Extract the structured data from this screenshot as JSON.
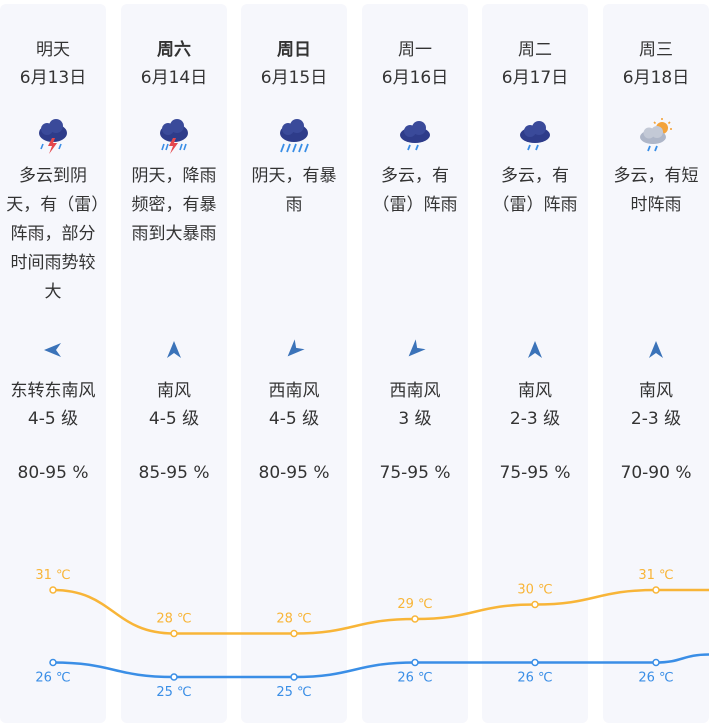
{
  "days": [
    {
      "name": "明天",
      "date": "6月13日",
      "bold": false,
      "icon": "thunderstorm-cloud-icon",
      "description": "多云到阴天，有（雷）阵雨，部分时间雨势较大",
      "wind_direction": "东转东南风",
      "wind_level": "4-5 级",
      "humidity": "80-95 %"
    },
    {
      "name": "周六",
      "date": "6月14日",
      "bold": true,
      "icon": "thunderstorm-cloud-icon",
      "description": "阴天，降雨频密，有暴雨到大暴雨",
      "wind_direction": "南风",
      "wind_level": "4-5 级",
      "humidity": "85-95 %"
    },
    {
      "name": "周日",
      "date": "6月15日",
      "bold": true,
      "icon": "heavy-rain-cloud-icon",
      "description": "阴天，有暴雨",
      "wind_direction": "西南风",
      "wind_level": "4-5 级",
      "humidity": "80-95 %"
    },
    {
      "name": "周一",
      "date": "6月16日",
      "bold": false,
      "icon": "rain-cloud-icon",
      "description": "多云，有（雷）阵雨",
      "wind_direction": "西南风",
      "wind_level": "3 级",
      "humidity": "75-95 %"
    },
    {
      "name": "周二",
      "date": "6月17日",
      "bold": false,
      "icon": "rain-cloud-icon",
      "description": "多云，有（雷）阵雨",
      "wind_direction": "南风",
      "wind_level": "2-3 级",
      "humidity": "75-95 %"
    },
    {
      "name": "周三",
      "date": "6月18日",
      "bold": false,
      "icon": "sun-cloud-shower-icon",
      "description": "多云，有短时阵雨",
      "wind_direction": "南风",
      "wind_level": "2-3 级",
      "humidity": "70-90 %"
    }
  ],
  "chart_data": {
    "type": "line",
    "x": [
      "6月13日",
      "6月14日",
      "6月15日",
      "6月16日",
      "6月17日",
      "6月18日"
    ],
    "series": [
      {
        "values": [
          31,
          28,
          28,
          29,
          30,
          31
        ],
        "labels": [
          "31 ℃",
          "28 ℃",
          "28 ℃",
          "29 ℃",
          "30 ℃",
          "31 ℃"
        ],
        "color": "#f8b538"
      },
      {
        "values": [
          26,
          25,
          25,
          26,
          26,
          26
        ],
        "labels": [
          "26 ℃",
          "25 ℃",
          "25 ℃",
          "26 ℃",
          "26 ℃",
          "26 ℃"
        ],
        "color": "#3a8ee6"
      }
    ]
  },
  "colors": {
    "column_bg": "#f6f7fc",
    "cloud_dark": "#2e3c8a",
    "lightning": "#e5484d",
    "rain": "#3a8ee6",
    "sun": "#f3a33b",
    "arrow": "#3b73b9"
  }
}
